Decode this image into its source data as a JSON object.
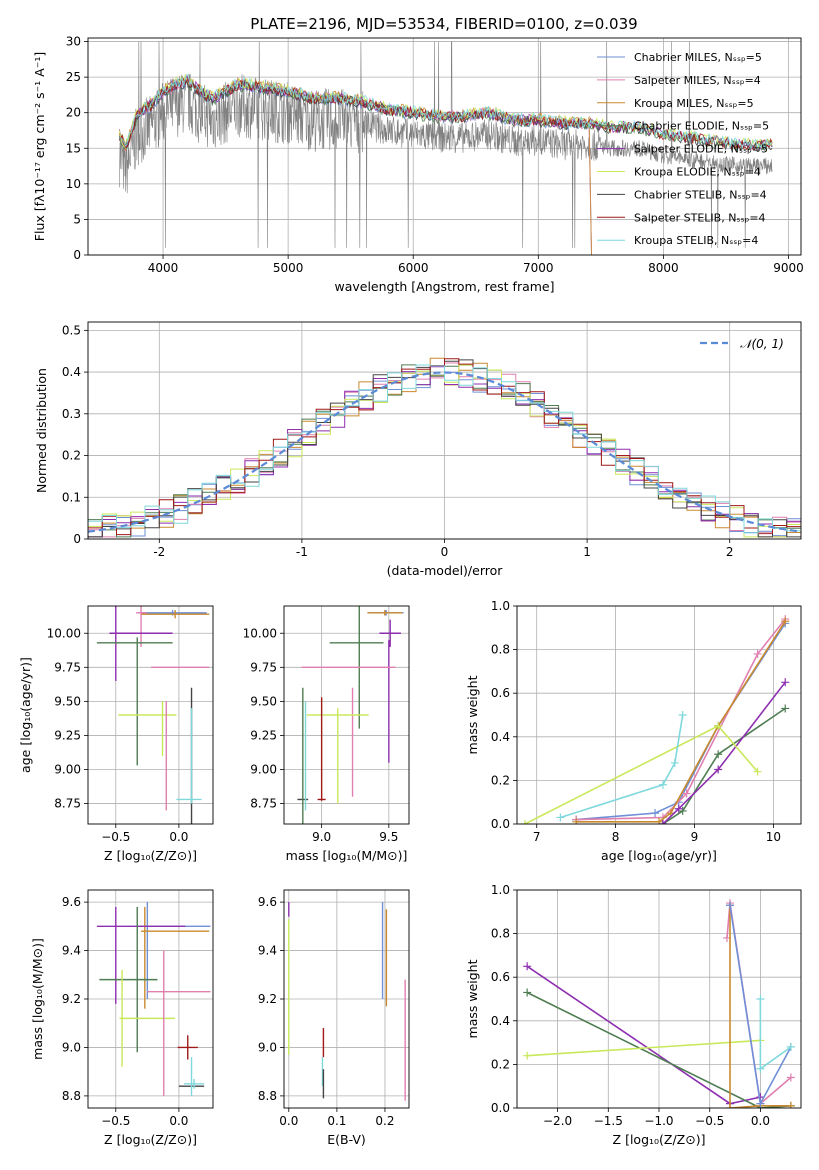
{
  "figure": {
    "title": "PLATE=2196, MJD=53534, FIBERID=0100, z=0.039"
  },
  "chart_data": [
    {
      "id": "spectrum",
      "type": "line",
      "xlabel": "wavelength [Angstrom, rest frame]",
      "ylabel": "Flux [fλ10⁻¹⁷ erg cm⁻² s⁻¹ A⁻¹]",
      "xlim": [
        3400,
        9100
      ],
      "ylim": [
        0,
        30.5
      ],
      "xticks": [
        4000,
        5000,
        6000,
        7000,
        8000,
        9000
      ],
      "yticks": [
        0,
        5,
        10,
        15,
        20,
        25,
        30
      ],
      "legend_position": "top-right",
      "legend": [
        {
          "label": "Chabrier MILES, Nₛₛₚ=5",
          "color": "#6f8fd6"
        },
        {
          "label": "Salpeter MILES, Nₛₛₚ=4",
          "color": "#e07fb0"
        },
        {
          "label": "Kroupa MILES, Nₛₛₚ=5",
          "color": "#c98a2f"
        },
        {
          "label": "Chabrier ELODIE, Nₛₛₚ=5",
          "color": "#4e7d52"
        },
        {
          "label": "Salpeter ELODIE, Nₛₛₚ=5",
          "color": "#8e2fb0"
        },
        {
          "label": "Kroupa ELODIE, Nₛₛₚ=4",
          "color": "#c9e85a"
        },
        {
          "label": "Chabrier STELIB, Nₛₛₚ=4",
          "color": "#444444"
        },
        {
          "label": "Salpeter STELIB, Nₛₛₚ=4",
          "color": "#a01818"
        },
        {
          "label": "Kroupa STELIB, Nₛₛₚ=4",
          "color": "#7fd8dc"
        }
      ],
      "data_color": "#808080",
      "x": [
        3650,
        3700,
        3800,
        3900,
        4000,
        4100,
        4200,
        4300,
        4400,
        4500,
        4600,
        4800,
        5000,
        5200,
        5400,
        5600,
        5800,
        6000,
        6200,
        6400,
        6600,
        6800,
        7000,
        7200,
        7400,
        7600,
        7800,
        8000,
        8200,
        8400,
        8600,
        8800
      ],
      "model_y": [
        17,
        15,
        20,
        21,
        23,
        24,
        24.5,
        23,
        22,
        23,
        24,
        23.5,
        23,
        22,
        22,
        21.5,
        20.5,
        20,
        19.5,
        19.5,
        20,
        19,
        19,
        18.5,
        18.5,
        18,
        18,
        17,
        16.5,
        16,
        15.5,
        15.5
      ]
    },
    {
      "id": "residuals",
      "type": "line",
      "xlabel": "(data-model)/error",
      "ylabel": "Normed distribution",
      "xlim": [
        -2.5,
        2.5
      ],
      "ylim": [
        0,
        0.52
      ],
      "xticks": [
        -2,
        -1,
        0,
        1,
        2
      ],
      "yticks": [
        0.0,
        0.1,
        0.2,
        0.3,
        0.4,
        0.5
      ],
      "legend_position": "top-right",
      "normal_label": "𝒩(0, 1)",
      "normal_color": "#5b8ad6"
    },
    {
      "id": "age-vs-Z",
      "type": "scatter",
      "xlabel": "Z [log₁₀(Z/Z⊙)]",
      "ylabel": "age  [log₁₀(age/yr)]",
      "xlim": [
        -0.72,
        0.27
      ],
      "ylim": [
        8.6,
        10.2
      ],
      "xticks": [
        -0.5,
        0.0
      ],
      "xticklabels": [
        "−0.5",
        "0.0"
      ],
      "yticks": [
        8.75,
        9.0,
        9.25,
        9.5,
        9.75,
        10.0
      ],
      "yticklabels": [
        "8.75",
        "9.00",
        "9.25",
        "9.50",
        "9.75",
        "10.00"
      ],
      "points": [
        {
          "x": -0.05,
          "y": 10.15,
          "xerr": 0.27,
          "yerr": 0.02,
          "color": "#6f8fd6"
        },
        {
          "x": -0.03,
          "y": 10.14,
          "xerr": 0.27,
          "yerr": 0.03,
          "color": "#c98a2f"
        },
        {
          "x": -0.3,
          "y": 10.15,
          "xerr": 0.04,
          "yerr": 0.25,
          "color": "#e07fb0"
        },
        {
          "x": 0.01,
          "y": 9.75,
          "xerr": 0.23,
          "yerr": 0.0,
          "color": "#e07fb0"
        },
        {
          "x": -0.5,
          "y": 10.0,
          "xerr": 0.0,
          "yerr": 0.35,
          "color": "#8e2fb0"
        },
        {
          "x": -0.3,
          "y": 10.0,
          "xerr": 0.25,
          "yerr": 0.0,
          "color": "#8e2fb0"
        },
        {
          "x": -0.35,
          "y": 9.93,
          "xerr": 0.3,
          "yerr": 0.0,
          "color": "#4e7d52"
        },
        {
          "x": -0.33,
          "y": 9.5,
          "xerr": 0.0,
          "yerr": 0.47,
          "color": "#4e7d52"
        },
        {
          "x": -0.25,
          "y": 9.4,
          "xerr": 0.0,
          "yerr": 0.0,
          "color": "#c9e85a"
        },
        {
          "x": -0.25,
          "y": 9.4,
          "xerr": 0.23,
          "yerr": 0.0,
          "color": "#c9e85a"
        },
        {
          "x": -0.13,
          "y": 9.3,
          "xerr": 0.0,
          "yerr": 0.2,
          "color": "#c9e85a"
        },
        {
          "x": 0.1,
          "y": 9.1,
          "xerr": 0.0,
          "yerr": 0.5,
          "color": "#444444"
        },
        {
          "x": 0.08,
          "y": 8.78,
          "xerr": 0.1,
          "yerr": 0.0,
          "color": "#7fd8dc"
        },
        {
          "x": 0.1,
          "y": 9.1,
          "xerr": 0.0,
          "yerr": 0.35,
          "color": "#7fd8dc"
        },
        {
          "x": -0.1,
          "y": 9.1,
          "xerr": 0.0,
          "yerr": 0.4,
          "color": "#e07fb0"
        }
      ]
    },
    {
      "id": "age-vs-mass",
      "type": "scatter",
      "xlabel": "mass [log₁₀(M/M⊙)]",
      "ylabel": "",
      "xlim": [
        8.72,
        9.65
      ],
      "ylim": [
        8.6,
        10.2
      ],
      "xticks": [
        9.0,
        9.5
      ],
      "xticklabels": [
        "9.0",
        "9.5"
      ],
      "yticks": [
        8.75,
        9.0,
        9.25,
        9.5,
        9.75,
        10.0
      ],
      "yticklabels": [
        "8.75",
        "9.00",
        "9.25",
        "9.50",
        "9.75",
        "10.00"
      ],
      "points": [
        {
          "x": 9.48,
          "y": 10.15,
          "xerr": 0.13,
          "yerr": 0.02,
          "color": "#6f8fd6"
        },
        {
          "x": 9.47,
          "y": 10.15,
          "xerr": 0.13,
          "yerr": 0.02,
          "color": "#c98a2f"
        },
        {
          "x": 9.51,
          "y": 10.0,
          "xerr": 0.08,
          "yerr": 0.1,
          "color": "#8e2fb0"
        },
        {
          "x": 9.26,
          "y": 9.93,
          "xerr": 0.2,
          "yerr": 0.0,
          "color": "#4e7d52"
        },
        {
          "x": 9.28,
          "y": 9.75,
          "xerr": 0.0,
          "yerr": 0.45,
          "color": "#4e7d52"
        },
        {
          "x": 9.5,
          "y": 9.5,
          "xerr": 0.0,
          "yerr": 0.45,
          "color": "#8e2fb0"
        },
        {
          "x": 9.2,
          "y": 9.75,
          "xerr": 0.35,
          "yerr": 0.0,
          "color": "#e07fb0"
        },
        {
          "x": 9.23,
          "y": 9.2,
          "xerr": 0.0,
          "yerr": 0.4,
          "color": "#e07fb0"
        },
        {
          "x": 9.12,
          "y": 9.4,
          "xerr": 0.23,
          "yerr": 0.0,
          "color": "#c9e85a"
        },
        {
          "x": 9.12,
          "y": 9.1,
          "xerr": 0.0,
          "yerr": 0.35,
          "color": "#c9e85a"
        },
        {
          "x": 9.0,
          "y": 9.15,
          "xerr": 0.0,
          "yerr": 0.38,
          "color": "#a01818"
        },
        {
          "x": 9.0,
          "y": 8.78,
          "xerr": 0.03,
          "yerr": 0.0,
          "color": "#a01818"
        },
        {
          "x": 8.86,
          "y": 8.78,
          "xerr": 0.04,
          "yerr": 0.0,
          "color": "#444444"
        },
        {
          "x": 8.86,
          "y": 9.1,
          "xerr": 0.0,
          "yerr": 0.5,
          "color": "#4e7d52"
        },
        {
          "x": 8.88,
          "y": 9.1,
          "xerr": 0.0,
          "yerr": 0.4,
          "color": "#7fd8dc"
        }
      ]
    },
    {
      "id": "massweight-vs-age",
      "type": "line",
      "xlabel": "age  [log₁₀(age/yr)]",
      "ylabel": "mass weight",
      "xlim": [
        6.75,
        10.35
      ],
      "ylim": [
        0.0,
        1.0
      ],
      "xticks": [
        7,
        8,
        9,
        10
      ],
      "yticks": [
        0.0,
        0.2,
        0.4,
        0.6,
        0.8,
        1.0
      ],
      "yticklabels": [
        "0.0",
        "0.2",
        "0.4",
        "0.6",
        "0.8",
        "1.0"
      ],
      "series": [
        {
          "color": "#6f8fd6",
          "x": [
            7.5,
            8.5,
            8.8,
            9.3,
            10.15
          ],
          "y": [
            0.02,
            0.05,
            0.1,
            0.45,
            0.92
          ]
        },
        {
          "color": "#e07fb0",
          "x": [
            7.5,
            8.6,
            8.9,
            9.8,
            10.15
          ],
          "y": [
            0.02,
            0.03,
            0.14,
            0.78,
            0.94
          ]
        },
        {
          "color": "#c98a2f",
          "x": [
            7.5,
            8.55,
            8.7,
            9.3,
            10.15
          ],
          "y": [
            0.01,
            0.01,
            0.05,
            0.45,
            0.93
          ]
        },
        {
          "color": "#4e7d52",
          "x": [
            8.6,
            8.85,
            9.3,
            10.15
          ],
          "y": [
            0.0,
            0.06,
            0.32,
            0.53
          ]
        },
        {
          "color": "#8e2fb0",
          "x": [
            8.6,
            8.8,
            9.3,
            10.15
          ],
          "y": [
            0.0,
            0.07,
            0.25,
            0.65
          ]
        },
        {
          "color": "#c9e85a",
          "x": [
            6.85,
            9.3,
            9.8
          ],
          "y": [
            0.0,
            0.45,
            0.24
          ]
        },
        {
          "color": "#7fd8dc",
          "x": [
            7.3,
            8.6,
            8.75,
            8.85
          ],
          "y": [
            0.03,
            0.18,
            0.28,
            0.5
          ]
        }
      ]
    },
    {
      "id": "mass-vs-Z",
      "type": "scatter",
      "xlabel": "Z [log₁₀(Z/Z⊙)]",
      "ylabel": "mass [log₁₀(M/M⊙)]",
      "xlim": [
        -0.72,
        0.27
      ],
      "ylim": [
        8.75,
        9.65
      ],
      "xticks": [
        -0.5,
        0.0
      ],
      "xticklabels": [
        "−0.5",
        "0.0"
      ],
      "yticks": [
        8.8,
        9.0,
        9.2,
        9.4,
        9.6
      ],
      "yticklabels": [
        "8.8",
        "9.0",
        "9.2",
        "9.4",
        "9.6"
      ],
      "points": [
        {
          "x": -0.05,
          "y": 9.5,
          "xerr": 0.3,
          "yerr": 0.0,
          "color": "#6f8fd6"
        },
        {
          "x": -0.25,
          "y": 9.4,
          "xerr": 0.0,
          "yerr": 0.2,
          "color": "#6f8fd6"
        },
        {
          "x": -0.03,
          "y": 9.48,
          "xerr": 0.27,
          "yerr": 0.0,
          "color": "#c98a2f"
        },
        {
          "x": -0.27,
          "y": 9.37,
          "xerr": 0.0,
          "yerr": 0.21,
          "color": "#c98a2f"
        },
        {
          "x": -0.3,
          "y": 9.5,
          "xerr": 0.35,
          "yerr": 0.0,
          "color": "#8e2fb0"
        },
        {
          "x": -0.5,
          "y": 9.38,
          "xerr": 0.0,
          "yerr": 0.2,
          "color": "#8e2fb0"
        },
        {
          "x": -0.4,
          "y": 9.28,
          "xerr": 0.23,
          "yerr": 0.0,
          "color": "#4e7d52"
        },
        {
          "x": -0.33,
          "y": 9.28,
          "xerr": 0.0,
          "yerr": 0.3,
          "color": "#4e7d52"
        },
        {
          "x": -0.25,
          "y": 9.12,
          "xerr": 0.22,
          "yerr": 0.0,
          "color": "#c9e85a"
        },
        {
          "x": -0.45,
          "y": 9.12,
          "xerr": 0.0,
          "yerr": 0.2,
          "color": "#c9e85a"
        },
        {
          "x": 0.0,
          "y": 9.23,
          "xerr": 0.25,
          "yerr": 0.0,
          "color": "#e07fb0"
        },
        {
          "x": -0.12,
          "y": 9.1,
          "xerr": 0.0,
          "yerr": 0.3,
          "color": "#e07fb0"
        },
        {
          "x": 0.07,
          "y": 9.0,
          "xerr": 0.08,
          "yerr": 0.05,
          "color": "#a01818"
        },
        {
          "x": 0.1,
          "y": 8.84,
          "xerr": 0.1,
          "yerr": 0.0,
          "color": "#444444"
        },
        {
          "x": 0.12,
          "y": 8.85,
          "xerr": 0.08,
          "yerr": 0.02,
          "color": "#7fd8dc"
        },
        {
          "x": 0.1,
          "y": 8.88,
          "xerr": 0.0,
          "yerr": 0.08,
          "color": "#7fd8dc"
        }
      ]
    },
    {
      "id": "mass-vs-EBV",
      "type": "scatter",
      "xlabel": "E(B-V)",
      "ylabel": "",
      "xlim": [
        -0.01,
        0.25
      ],
      "ylim": [
        8.75,
        9.65
      ],
      "xticks": [
        0.0,
        0.1,
        0.2
      ],
      "xticklabels": [
        "0.0",
        "0.1",
        "0.2"
      ],
      "yticks": [
        8.8,
        9.0,
        9.2,
        9.4,
        9.6
      ],
      "yticklabels": [
        "8.8",
        "9.0",
        "9.2",
        "9.4",
        "9.6"
      ],
      "points": [
        {
          "x": 0.0,
          "y": 9.57,
          "xerr": 0.0,
          "yerr": 0.03,
          "color": "#8e2fb0"
        },
        {
          "x": 0.0,
          "y": 9.25,
          "xerr": 0.0,
          "yerr": 0.28,
          "color": "#c9e85a"
        },
        {
          "x": 0.195,
          "y": 9.4,
          "xerr": 0.0,
          "yerr": 0.2,
          "color": "#6f8fd6"
        },
        {
          "x": 0.203,
          "y": 9.37,
          "xerr": 0.0,
          "yerr": 0.2,
          "color": "#c98a2f"
        },
        {
          "x": 0.242,
          "y": 9.03,
          "xerr": 0.0,
          "yerr": 0.25,
          "color": "#e07fb0"
        },
        {
          "x": 0.072,
          "y": 9.02,
          "xerr": 0.0,
          "yerr": 0.06,
          "color": "#a01818"
        },
        {
          "x": 0.07,
          "y": 8.9,
          "xerr": 0.0,
          "yerr": 0.06,
          "color": "#7fd8dc"
        },
        {
          "x": 0.072,
          "y": 8.85,
          "xerr": 0.0,
          "yerr": 0.06,
          "color": "#444444"
        }
      ]
    },
    {
      "id": "massweight-vs-Z",
      "type": "line",
      "xlabel": "Z [log₁₀(Z/Z⊙)]",
      "ylabel": "mass weight",
      "xlim": [
        -2.4,
        0.4
      ],
      "ylim": [
        0.0,
        1.0
      ],
      "xticks": [
        -2.0,
        -1.5,
        -1.0,
        -0.5,
        0.0
      ],
      "xticklabels": [
        "−2.0",
        "−1.5",
        "−1.0",
        "−0.5",
        "0.0"
      ],
      "yticks": [
        0.0,
        0.2,
        0.4,
        0.6,
        0.8,
        1.0
      ],
      "yticklabels": [
        "0.0",
        "0.2",
        "0.4",
        "0.6",
        "0.8",
        "1.0"
      ],
      "series": [
        {
          "color": "#8e2fb0",
          "x": [
            -2.3,
            -0.3,
            0.0
          ],
          "y": [
            0.65,
            0.02,
            0.05
          ]
        },
        {
          "color": "#4e7d52",
          "x": [
            -2.3,
            0.0,
            0.3
          ],
          "y": [
            0.53,
            0.0,
            0.01
          ]
        },
        {
          "color": "#c9e85a",
          "x": [
            -2.3,
            0.0
          ],
          "y": [
            0.24,
            0.31
          ]
        },
        {
          "color": "#e07fb0",
          "x": [
            -0.33,
            -0.3,
            0.0,
            0.3
          ],
          "y": [
            0.78,
            0.94,
            0.02,
            0.14
          ]
        },
        {
          "color": "#c98a2f",
          "x": [
            -0.3,
            -0.3,
            0.0,
            0.3
          ],
          "y": [
            0.93,
            0.0,
            0.01,
            0.01
          ]
        },
        {
          "color": "#6f8fd6",
          "x": [
            -0.3,
            0.0,
            0.3
          ],
          "y": [
            0.93,
            0.02,
            0.28
          ]
        },
        {
          "color": "#7fd8dc",
          "x": [
            0.0,
            0.0,
            0.3
          ],
          "y": [
            0.5,
            0.18,
            0.28
          ]
        }
      ]
    }
  ]
}
